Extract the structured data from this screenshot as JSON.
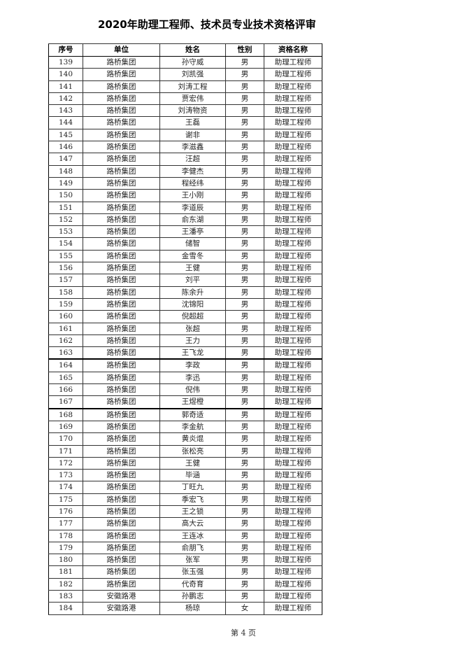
{
  "title": "2020年助理工程师、技术员专业技术资格评审",
  "headers": [
    "序号",
    "单位",
    "姓名",
    "性别",
    "资格名称"
  ],
  "rows": [
    [
      "139",
      "路桥集团",
      "孙守威",
      "男",
      "助理工程师"
    ],
    [
      "140",
      "路桥集团",
      "刘凯强",
      "男",
      "助理工程师"
    ],
    [
      "141",
      "路桥集团",
      "刘涛工程",
      "男",
      "助理工程师"
    ],
    [
      "142",
      "路桥集团",
      "贾宏伟",
      "男",
      "助理工程师"
    ],
    [
      "143",
      "路桥集团",
      "刘涛物资",
      "男",
      "助理工程师"
    ],
    [
      "144",
      "路桥集团",
      "王磊",
      "男",
      "助理工程师"
    ],
    [
      "145",
      "路桥集团",
      "谢非",
      "男",
      "助理工程师"
    ],
    [
      "146",
      "路桥集团",
      "李滋鑫",
      "男",
      "助理工程师"
    ],
    [
      "147",
      "路桥集团",
      "汪超",
      "男",
      "助理工程师"
    ],
    [
      "148",
      "路桥集团",
      "李健杰",
      "男",
      "助理工程师"
    ],
    [
      "149",
      "路桥集团",
      "程经纬",
      "男",
      "助理工程师"
    ],
    [
      "150",
      "路桥集团",
      "王小刚",
      "男",
      "助理工程师"
    ],
    [
      "151",
      "路桥集团",
      "李道辰",
      "男",
      "助理工程师"
    ],
    [
      "152",
      "路桥集团",
      "俞东湖",
      "男",
      "助理工程师"
    ],
    [
      "153",
      "路桥集团",
      "王潘亭",
      "男",
      "助理工程师"
    ],
    [
      "154",
      "路桥集团",
      "储智",
      "男",
      "助理工程师"
    ],
    [
      "155",
      "路桥集团",
      "金雪冬",
      "男",
      "助理工程师"
    ],
    [
      "156",
      "路桥集团",
      "王健",
      "男",
      "助理工程师"
    ],
    [
      "157",
      "路桥集团",
      "刘平",
      "男",
      "助理工程师"
    ],
    [
      "158",
      "路桥集团",
      "陈余升",
      "男",
      "助理工程师"
    ],
    [
      "159",
      "路桥集团",
      "沈锦阳",
      "男",
      "助理工程师"
    ],
    [
      "160",
      "路桥集团",
      "倪超超",
      "男",
      "助理工程师"
    ],
    [
      "161",
      "路桥集团",
      "张超",
      "男",
      "助理工程师"
    ],
    [
      "162",
      "路桥集团",
      "王力",
      "男",
      "助理工程师"
    ],
    [
      "163",
      "路桥集团",
      "王飞龙",
      "男",
      "助理工程师"
    ],
    [
      "164",
      "路桥集团",
      "李政",
      "男",
      "助理工程师"
    ],
    [
      "165",
      "路桥集团",
      "李迅",
      "男",
      "助理工程师"
    ],
    [
      "166",
      "路桥集团",
      "倪伟",
      "男",
      "助理工程师"
    ],
    [
      "167",
      "路桥集团",
      "王煜橙",
      "男",
      "助理工程师"
    ],
    [
      "168",
      "路桥集团",
      "郭奇适",
      "男",
      "助理工程师"
    ],
    [
      "169",
      "路桥集团",
      "李金航",
      "男",
      "助理工程师"
    ],
    [
      "170",
      "路桥集团",
      "黄炎焜",
      "男",
      "助理工程师"
    ],
    [
      "171",
      "路桥集团",
      "张松亮",
      "男",
      "助理工程师"
    ],
    [
      "172",
      "路桥集团",
      "王健",
      "男",
      "助理工程师"
    ],
    [
      "173",
      "路桥集团",
      "毕涵",
      "男",
      "助理工程师"
    ],
    [
      "174",
      "路桥集团",
      "丁旺九",
      "男",
      "助理工程师"
    ],
    [
      "175",
      "路桥集团",
      "季宏飞",
      "男",
      "助理工程师"
    ],
    [
      "176",
      "路桥集团",
      "王之锁",
      "男",
      "助理工程师"
    ],
    [
      "177",
      "路桥集团",
      "高大云",
      "男",
      "助理工程师"
    ],
    [
      "178",
      "路桥集团",
      "王连冰",
      "男",
      "助理工程师"
    ],
    [
      "179",
      "路桥集团",
      "俞朋飞",
      "男",
      "助理工程师"
    ],
    [
      "180",
      "路桥集团",
      "张军",
      "男",
      "助理工程师"
    ],
    [
      "181",
      "路桥集团",
      "张玉强",
      "男",
      "助理工程师"
    ],
    [
      "182",
      "路桥集团",
      "代奇育",
      "男",
      "助理工程师"
    ],
    [
      "183",
      "安徽路港",
      "孙鹏志",
      "男",
      "助理工程师"
    ],
    [
      "184",
      "安徽路港",
      "杨琼",
      "女",
      "助理工程师"
    ]
  ],
  "footer": "第 4 页"
}
